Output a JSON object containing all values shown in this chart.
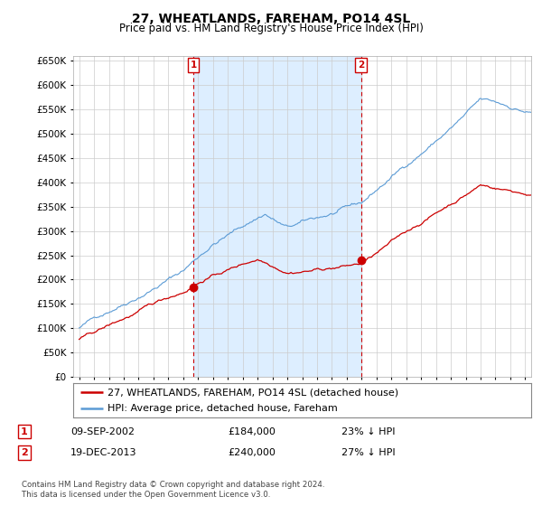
{
  "title": "27, WHEATLANDS, FAREHAM, PO14 4SL",
  "subtitle": "Price paid vs. HM Land Registry's House Price Index (HPI)",
  "legend_line1": "27, WHEATLANDS, FAREHAM, PO14 4SL (detached house)",
  "legend_line2": "HPI: Average price, detached house, Fareham",
  "annotation1": {
    "label": "1",
    "date": "09-SEP-2002",
    "price": "£184,000",
    "pct": "23% ↓ HPI",
    "x_year": 2002.69,
    "y_price": 184000
  },
  "annotation2": {
    "label": "2",
    "date": "19-DEC-2013",
    "price": "£240,000",
    "pct": "27% ↓ HPI",
    "x_year": 2013.96,
    "y_price": 240000
  },
  "footer1": "Contains HM Land Registry data © Crown copyright and database right 2024.",
  "footer2": "This data is licensed under the Open Government Licence v3.0.",
  "hpi_color": "#5b9bd5",
  "price_color": "#cc0000",
  "annotation_color": "#cc0000",
  "grid_color": "#cccccc",
  "bg_color": "#ffffff",
  "shade_color": "#ddeeff",
  "ylim": [
    0,
    660000
  ],
  "yticks": [
    0,
    50000,
    100000,
    150000,
    200000,
    250000,
    300000,
    350000,
    400000,
    450000,
    500000,
    550000,
    600000,
    650000
  ],
  "xlim_start": 1994.6,
  "xlim_end": 2025.4
}
